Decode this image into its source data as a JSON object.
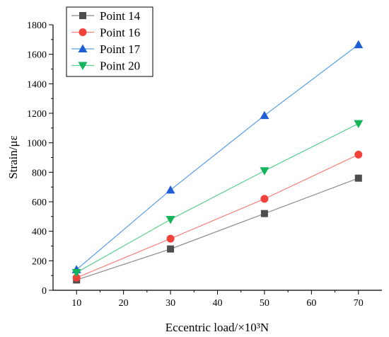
{
  "chart_data": {
    "type": "line",
    "title": "",
    "xlabel": "Eccentric load/×10³N",
    "ylabel": "Strain/με",
    "xlim": [
      5,
      75
    ],
    "ylim": [
      0,
      1800
    ],
    "x_ticks": [
      10,
      20,
      30,
      40,
      50,
      60,
      70
    ],
    "y_ticks": [
      0,
      200,
      400,
      600,
      800,
      1000,
      1200,
      1400,
      1600,
      1800
    ],
    "grid": false,
    "legend_position": "top-left",
    "series": [
      {
        "name": "Point 14",
        "marker": "square",
        "color": "#4d4d4d",
        "line_color": "#8c8c8c",
        "x": [
          10,
          30,
          50,
          70
        ],
        "y": [
          70,
          280,
          520,
          760
        ]
      },
      {
        "name": "Point 16",
        "marker": "circle",
        "color": "#f2403a",
        "line_color": "#f4807c",
        "x": [
          10,
          30,
          50,
          70
        ],
        "y": [
          85,
          350,
          620,
          920
        ]
      },
      {
        "name": "Point 17",
        "marker": "triangle-up",
        "color": "#1f5fd6",
        "line_color": "#5b9ee8",
        "x": [
          10,
          30,
          50,
          70
        ],
        "y": [
          140,
          680,
          1185,
          1665
        ]
      },
      {
        "name": "Point 20",
        "marker": "triangle-down",
        "color": "#15b35a",
        "line_color": "#5ccf8f",
        "x": [
          10,
          30,
          50,
          70
        ],
        "y": [
          120,
          480,
          810,
          1130
        ]
      }
    ]
  }
}
